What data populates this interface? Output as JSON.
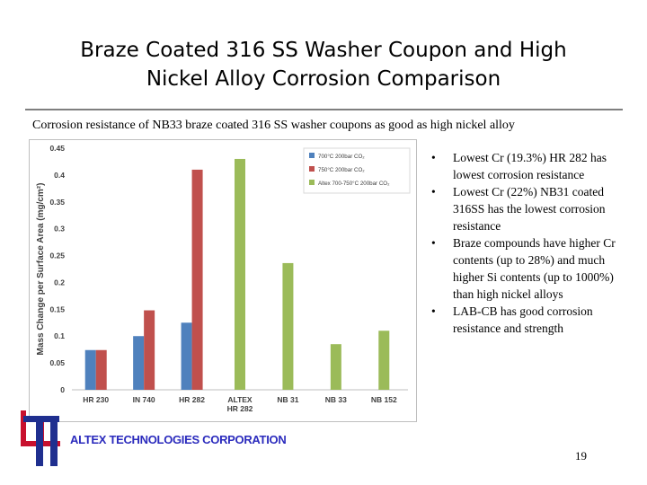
{
  "slide": {
    "title_line1": "Braze Coated 316 SS Washer Coupon and High",
    "title_line2": "Nickel Alloy Corrosion Comparison",
    "subtitle": "Corrosion resistance of NB33 braze coated 316 SS washer coupons as good as high nickel alloy",
    "bullets": [
      "Lowest Cr (19.3%) HR 282 has lowest corrosion resistance",
      "Lowest Cr (22%) NB31 coated 316SS has the lowest corrosion resistance",
      "Braze compounds have higher Cr contents (up to 28%) and much higher Si contents (up to 1000%) than high nickel alloys",
      "LAB-CB has good corrosion resistance and strength"
    ],
    "company": "ALTEX TECHNOLOGIES CORPORATION",
    "page_number": "19",
    "logo_colors": {
      "red": "#c8102e",
      "blue": "#1f2f8f"
    }
  },
  "chart_data": {
    "type": "bar",
    "categories": [
      "HR 230",
      "IN 740",
      "HR 282",
      "ALTEX\nHR 282",
      "NB 31",
      "NB 33",
      "NB 152"
    ],
    "series": [
      {
        "name": "700°C 200bar CO₂",
        "color": "#4f81bd",
        "values": [
          0.074,
          0.1,
          0.125,
          null,
          null,
          null,
          null
        ]
      },
      {
        "name": "750°C 200bar CO₂",
        "color": "#c0504d",
        "values": [
          0.074,
          0.148,
          0.41,
          null,
          null,
          null,
          null
        ]
      },
      {
        "name": "Altex 700-750°C 200bar CO₂",
        "color": "#9bbb59",
        "values": [
          null,
          null,
          null,
          0.43,
          0.236,
          0.085,
          0.11
        ]
      }
    ],
    "ylabel": "Mass Change per Surface Area  (mg/cm²)",
    "xlabel": "",
    "ylim": [
      0,
      0.45
    ],
    "yticks": [
      0,
      0.05,
      0.1,
      0.15,
      0.2,
      0.25,
      0.3,
      0.35,
      0.4,
      0.45
    ],
    "ytick_labels": [
      "0",
      "0.05",
      "0.1",
      "0.15",
      "0.2",
      "0.25",
      "0.3",
      "0.35",
      "0.4",
      "0.45"
    ],
    "grid": false,
    "legend_position": "top-right"
  }
}
